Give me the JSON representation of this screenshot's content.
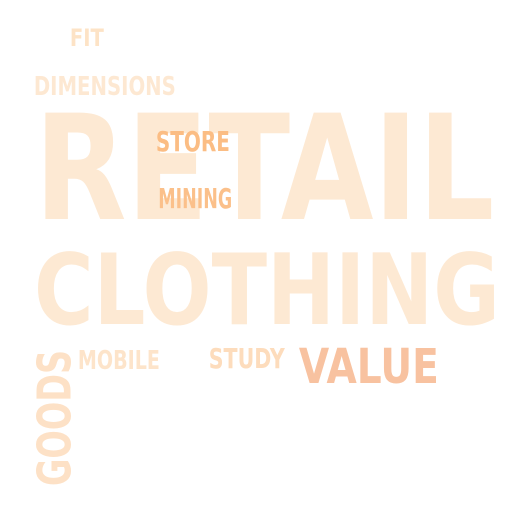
{
  "words": {
    "retail": {
      "text": "RETAIL",
      "color": "#fde9d3"
    },
    "clothing": {
      "text": "CLOTHING",
      "color": "#fde9d3"
    },
    "dimensions": {
      "text": "DIMENSIONS",
      "color": "#fde8d2"
    },
    "fit": {
      "text": "FIT",
      "color": "#fde3c6"
    },
    "store": {
      "text": "STORE",
      "color": "#fbbd84"
    },
    "mining": {
      "text": "MINING",
      "color": "#fbc08a"
    },
    "mobile": {
      "text": "MOBILE",
      "color": "#fde4ca"
    },
    "study": {
      "text": "STUDY",
      "color": "#fddcbc"
    },
    "value": {
      "text": "VALUE",
      "color": "#f8c2a0"
    },
    "goods": {
      "text": "GOODS",
      "color": "#fde1c6"
    }
  }
}
